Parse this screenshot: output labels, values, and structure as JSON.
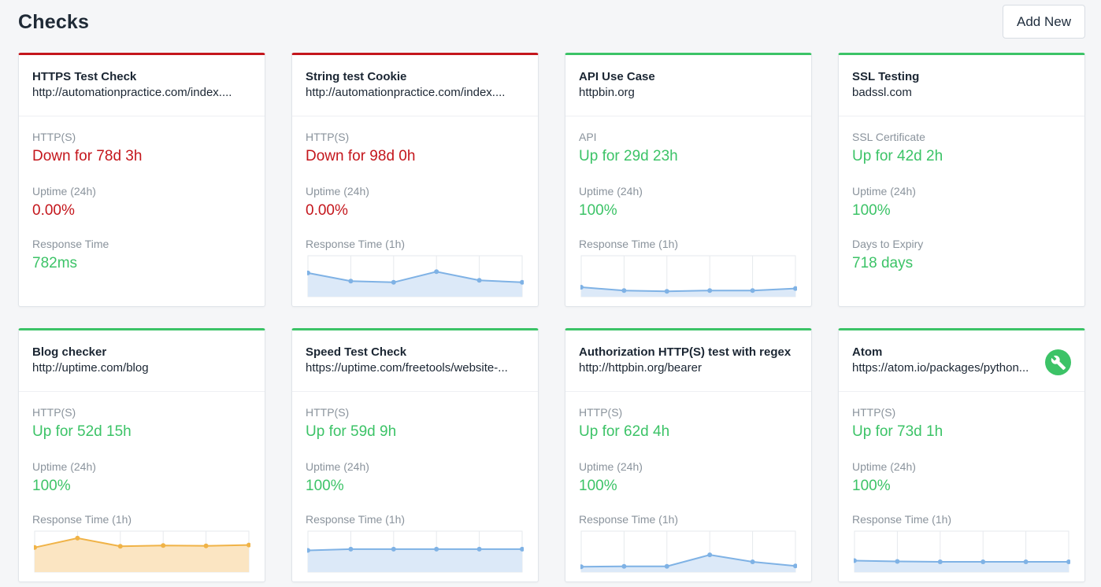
{
  "header": {
    "title": "Checks",
    "add_label": "Add New"
  },
  "colors": {
    "up": "#3cc367",
    "down": "#c4161c",
    "spark_blue": "#7fb2e5",
    "spark_orange": "#f0b347"
  },
  "checks": [
    {
      "status": "down",
      "name": "HTTPS Test Check",
      "url": "http://automationpractice.com/index....",
      "type": "HTTP(S)",
      "state": "Down for 78d 3h",
      "uptime_label": "Uptime (24h)",
      "uptime": "0.00%",
      "third_label": "Response Time",
      "third_value": "782ms",
      "chart": null
    },
    {
      "status": "down",
      "name": "String test Cookie",
      "url": "http://automationpractice.com/index....",
      "type": "HTTP(S)",
      "state": "Down for 98d 0h",
      "uptime_label": "Uptime (24h)",
      "uptime": "0.00%",
      "third_label": "Response Time (1h)",
      "third_value": null,
      "chart": {
        "color": "blue",
        "values": [
          0.42,
          0.62,
          0.65,
          0.39,
          0.6,
          0.65
        ]
      }
    },
    {
      "status": "up",
      "name": "API Use Case",
      "url": "httpbin.org",
      "type": "API",
      "state": "Up for 29d 23h",
      "uptime_label": "Uptime (24h)",
      "uptime": "100%",
      "third_label": "Response Time (1h)",
      "third_value": null,
      "chart": {
        "color": "blue",
        "values": [
          0.77,
          0.85,
          0.87,
          0.85,
          0.85,
          0.8
        ]
      }
    },
    {
      "status": "up",
      "name": "SSL Testing",
      "url": "badssl.com",
      "type": "SSL Certificate",
      "state": "Up for 42d 2h",
      "uptime_label": "Uptime (24h)",
      "uptime": "100%",
      "third_label": "Days to Expiry",
      "third_value": "718 days",
      "chart": null
    },
    {
      "status": "up",
      "name": "Blog checker",
      "url": "http://uptime.com/blog",
      "type": "HTTP(S)",
      "state": "Up for 52d 15h",
      "uptime_label": "Uptime (24h)",
      "uptime": "100%",
      "third_label": "Response Time (1h)",
      "third_value": null,
      "chart": {
        "color": "orange",
        "values": [
          0.4,
          0.17,
          0.37,
          0.35,
          0.36,
          0.34
        ]
      }
    },
    {
      "status": "up",
      "name": "Speed Test Check",
      "url": "https://uptime.com/freetools/website-...",
      "type": "HTTP(S)",
      "state": "Up for 59d 9h",
      "uptime_label": "Uptime (24h)",
      "uptime": "100%",
      "third_label": "Response Time (1h)",
      "third_value": null,
      "chart": {
        "color": "blue",
        "values": [
          0.47,
          0.44,
          0.44,
          0.44,
          0.44,
          0.44
        ]
      }
    },
    {
      "status": "up",
      "name": "Authorization HTTP(S) test with regex",
      "url": "http://httpbin.org/bearer",
      "type": "HTTP(S)",
      "state": "Up for 62d 4h",
      "uptime_label": "Uptime (24h)",
      "uptime": "100%",
      "third_label": "Response Time (1h)",
      "third_value": null,
      "chart": {
        "color": "blue",
        "values": [
          0.87,
          0.86,
          0.86,
          0.58,
          0.75,
          0.85
        ]
      }
    },
    {
      "status": "up",
      "name": "Atom",
      "url": "https://atom.io/packages/python...",
      "type": "HTTP(S)",
      "state": "Up for 73d 1h",
      "uptime_label": "Uptime (24h)",
      "uptime": "100%",
      "third_label": "Response Time (1h)",
      "third_value": null,
      "maintenance_icon": "wrench-icon",
      "chart": {
        "color": "blue",
        "values": [
          0.72,
          0.74,
          0.75,
          0.75,
          0.75,
          0.75
        ]
      }
    }
  ]
}
